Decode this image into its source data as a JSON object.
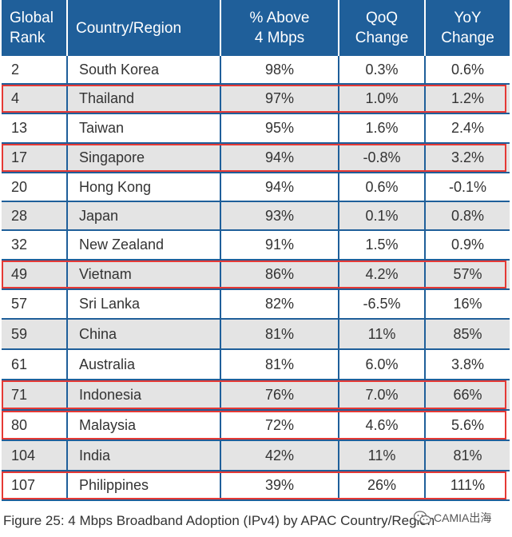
{
  "table": {
    "headers": {
      "rank": [
        "Global",
        "Rank"
      ],
      "country": "Country/Region",
      "pct": [
        "% Above",
        "4 Mbps"
      ],
      "qoq": [
        "QoQ",
        "Change"
      ],
      "yoy": [
        "YoY",
        "Change"
      ]
    },
    "rows": [
      {
        "rank": "2",
        "country": "South Korea",
        "pct": "98%",
        "qoq": "0.3%",
        "yoy": "0.6%",
        "highlighted": false
      },
      {
        "rank": "4",
        "country": "Thailand",
        "pct": "97%",
        "qoq": "1.0%",
        "yoy": "1.2%",
        "highlighted": true
      },
      {
        "rank": "13",
        "country": "Taiwan",
        "pct": "95%",
        "qoq": "1.6%",
        "yoy": "2.4%",
        "highlighted": false
      },
      {
        "rank": "17",
        "country": "Singapore",
        "pct": "94%",
        "qoq": "-0.8%",
        "yoy": "3.2%",
        "highlighted": true
      },
      {
        "rank": "20",
        "country": "Hong Kong",
        "pct": "94%",
        "qoq": "0.6%",
        "yoy": "-0.1%",
        "highlighted": false
      },
      {
        "rank": "28",
        "country": "Japan",
        "pct": "93%",
        "qoq": "0.1%",
        "yoy": "0.8%",
        "highlighted": false
      },
      {
        "rank": "32",
        "country": "New Zealand",
        "pct": "91%",
        "qoq": "1.5%",
        "yoy": "0.9%",
        "highlighted": false
      },
      {
        "rank": "49",
        "country": "Vietnam",
        "pct": "86%",
        "qoq": "4.2%",
        "yoy": "57%",
        "highlighted": true
      },
      {
        "rank": "57",
        "country": "Sri Lanka",
        "pct": "82%",
        "qoq": "-6.5%",
        "yoy": "16%",
        "highlighted": false
      },
      {
        "rank": "59",
        "country": "China",
        "pct": "81%",
        "qoq": "11%",
        "yoy": "85%",
        "highlighted": false
      },
      {
        "rank": "61",
        "country": "Australia",
        "pct": "81%",
        "qoq": "6.0%",
        "yoy": "3.8%",
        "highlighted": false
      },
      {
        "rank": "71",
        "country": "Indonesia",
        "pct": "76%",
        "qoq": "7.0%",
        "yoy": "66%",
        "highlighted": true
      },
      {
        "rank": "80",
        "country": "Malaysia",
        "pct": "72%",
        "qoq": "4.6%",
        "yoy": "5.6%",
        "highlighted": true
      },
      {
        "rank": "104",
        "country": "India",
        "pct": "42%",
        "qoq": "11%",
        "yoy": "81%",
        "highlighted": false
      },
      {
        "rank": "107",
        "country": "Philippines",
        "pct": "39%",
        "qoq": "26%",
        "yoy": "111%",
        "highlighted": true
      }
    ]
  },
  "caption": "Figure 25: 4 Mbps Broadband Adoption (IPv4) by APAC Country/Region",
  "watermark": {
    "text": "CAMIA出海",
    "icon": "wechat-icon"
  },
  "colors": {
    "header_bg": "#1f5f9a",
    "header_text": "#ffffff",
    "row_alt_bg": "#e4e4e4",
    "highlight_border": "#e53935"
  }
}
